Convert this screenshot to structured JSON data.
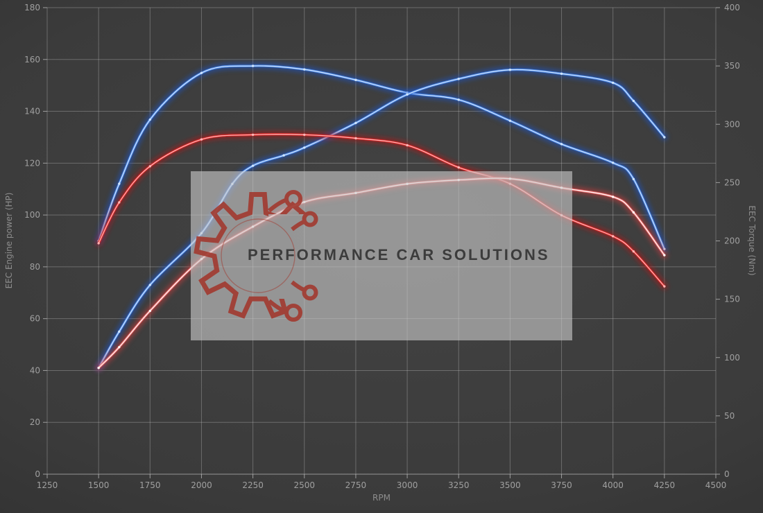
{
  "watermark": {
    "text": "PERFORMANCE CAR SOLUTIONS",
    "logo": "gear-circuit-icon",
    "logo_color": "#a23a30",
    "text_color": "#3c3c3c"
  },
  "chart_data": {
    "type": "line",
    "title": "",
    "xlabel": "RPM",
    "grid": true,
    "legend_position": "none",
    "background": "dark-gray",
    "x_axis": {
      "range": [
        1250,
        4500
      ],
      "ticks": [
        1250,
        1500,
        1750,
        2000,
        2250,
        2500,
        2750,
        3000,
        3250,
        3500,
        3750,
        4000,
        4250,
        4500
      ]
    },
    "left_axis": {
      "label": "EEC Engine power (HP)",
      "range": [
        0,
        180
      ],
      "ticks": [
        0,
        20,
        40,
        60,
        80,
        100,
        120,
        140,
        160,
        180
      ]
    },
    "right_axis": {
      "label": "EEC Torque (Nm)",
      "range": [
        0,
        400
      ],
      "ticks": [
        0,
        50,
        100,
        150,
        200,
        250,
        300,
        350,
        400
      ]
    },
    "series": [
      {
        "id": "torque-blue",
        "axis": "right",
        "unit": "Nm",
        "color_glow": "#1c55c8",
        "color_mid": "#4a87e8",
        "color_core": "#d4e8ff",
        "x": [
          1500,
          1600,
          1750,
          2000,
          2250,
          2500,
          2750,
          3000,
          3250,
          3500,
          3750,
          4000,
          4100,
          4250
        ],
        "y": [
          200,
          249,
          304,
          344,
          350,
          347,
          338,
          327,
          321,
          303,
          283,
          267,
          253,
          193
        ]
      },
      {
        "id": "power-blue",
        "axis": "left",
        "unit": "HP",
        "color_glow": "#1c55c8",
        "color_mid": "#4a87e8",
        "color_core": "#d4e8ff",
        "x": [
          1500,
          1600,
          1750,
          2000,
          2150,
          2250,
          2400,
          2500,
          2750,
          3000,
          3250,
          3500,
          3750,
          4000,
          4100,
          4250
        ],
        "y": [
          41,
          55,
          73,
          93,
          112,
          119,
          123,
          126,
          135.5,
          146.5,
          152.5,
          156,
          154.5,
          151,
          144,
          130
        ]
      },
      {
        "id": "torque-red",
        "axis": "right",
        "unit": "Nm",
        "color_glow": "#b51414",
        "color_mid": "#dd2424",
        "color_core": "#ffbcbc",
        "x": [
          1500,
          1600,
          1750,
          2000,
          2250,
          2500,
          2750,
          3000,
          3250,
          3500,
          3750,
          4000,
          4100,
          4250
        ],
        "y": [
          198,
          233,
          264,
          287,
          291,
          291,
          288,
          282,
          263,
          249,
          222,
          204,
          191,
          161
        ]
      },
      {
        "id": "power-red",
        "axis": "left",
        "unit": "HP",
        "color_glow": "#cc3a3a",
        "color_mid": "#ef6b6b",
        "color_core": "#ffffff",
        "x": [
          1500,
          1600,
          1750,
          2000,
          2250,
          2500,
          2750,
          3000,
          3250,
          3500,
          3750,
          4000,
          4100,
          4250
        ],
        "y": [
          41,
          49,
          63,
          83,
          95.5,
          105,
          108.5,
          112,
          113.5,
          114,
          110.5,
          107,
          101,
          84.5
        ]
      }
    ]
  }
}
